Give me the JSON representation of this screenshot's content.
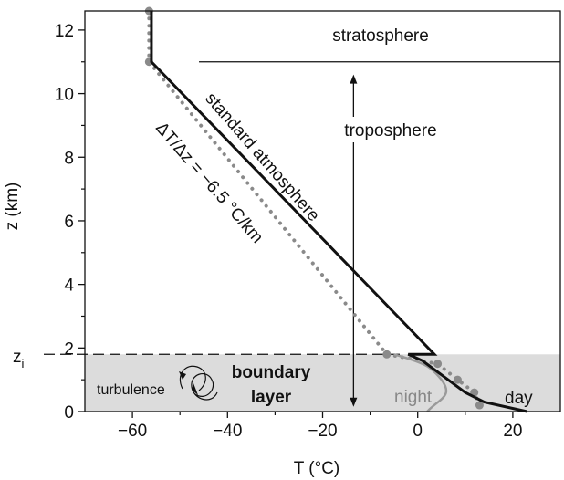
{
  "chart_data": {
    "type": "line",
    "xlabel": "T (°C)",
    "ylabel": "z (km)",
    "xlim": [
      -70,
      30
    ],
    "ylim": [
      0,
      12.6
    ],
    "xticks": [
      -60,
      -40,
      -20,
      0,
      20
    ],
    "yticks": [
      0,
      2,
      4,
      6,
      8,
      10,
      12
    ],
    "x_minor_step": 10,
    "y_minor_step": 1,
    "grid": false,
    "series": [
      {
        "name": "standard atmosphere",
        "style": "dotted",
        "color": "#8a8a8a",
        "points": [
          [
            -56.5,
            12.6
          ],
          [
            -56.5,
            11.0
          ],
          [
            -6.5,
            1.8
          ],
          [
            4.2,
            1.5
          ],
          [
            8.4,
            1.0
          ],
          [
            11.9,
            0.6
          ],
          [
            13.0,
            0.2
          ]
        ]
      },
      {
        "name": "day",
        "style": "solid",
        "color": "#111111",
        "points": [
          [
            -56.0,
            12.6
          ],
          [
            -56.0,
            11.0
          ],
          [
            3.5,
            1.8
          ],
          [
            -2.0,
            1.8
          ],
          [
            1.0,
            1.6
          ],
          [
            10.0,
            0.6
          ],
          [
            14.0,
            0.3
          ],
          [
            23.0,
            0.0
          ]
        ]
      },
      {
        "name": "night",
        "style": "solid",
        "color": "#9a9a9a",
        "points": [
          [
            -5.0,
            1.8
          ],
          [
            1.0,
            1.55
          ],
          [
            4.0,
            1.2
          ],
          [
            6.0,
            0.8
          ],
          [
            6.0,
            0.5
          ],
          [
            3.0,
            0.15
          ],
          [
            2.0,
            0.0
          ]
        ]
      }
    ],
    "boundary_layer_top": 1.8,
    "tropopause": 11.0,
    "zi_label": "z",
    "zi_subscript": "i",
    "regions": {
      "stratosphere": "stratosphere",
      "troposphere": "troposphere",
      "boundary_layer_line1": "boundary",
      "boundary_layer_line2": "layer"
    },
    "annotations": {
      "standard_atmosphere": "standard atmosphere",
      "lapse_rate": "ΔT/Δz = −6.5 °C/km",
      "turbulence": "turbulence",
      "night": "night",
      "day": "day"
    },
    "colors": {
      "boundary_layer_fill": "#dcdcdc",
      "dots": "#8a8a8a"
    }
  }
}
